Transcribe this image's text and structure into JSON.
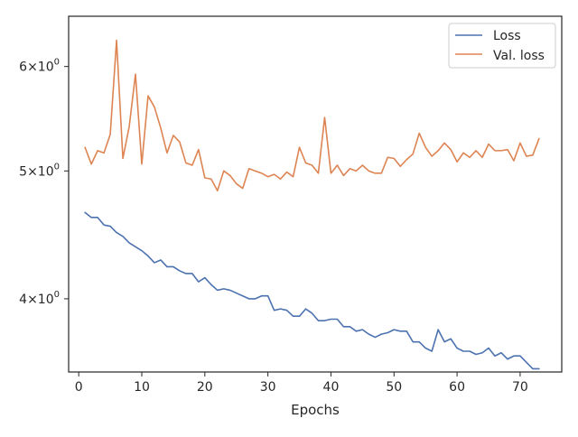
{
  "chart_data": {
    "type": "line",
    "title": "",
    "xlabel": "Epochs",
    "ylabel": "",
    "y_scale": "log",
    "xlim": [
      -1.6,
      76.6
    ],
    "ylim": [
      3.52,
      6.55
    ],
    "x_ticks": [
      0,
      10,
      20,
      30,
      40,
      50,
      60,
      70
    ],
    "x_tick_labels": [
      "0",
      "10",
      "20",
      "30",
      "40",
      "50",
      "60",
      "70"
    ],
    "y_ticks": [
      4,
      5,
      6
    ],
    "y_tick_labels": [
      {
        "base": "4",
        "sep": "×",
        "mant": "10",
        "exp": "0"
      },
      {
        "base": "5",
        "sep": "×",
        "mant": "10",
        "exp": "0"
      },
      {
        "base": "6",
        "sep": "×",
        "mant": "10",
        "exp": "0"
      }
    ],
    "legend_position": "top-right",
    "grid": false,
    "x": [
      1,
      2,
      3,
      4,
      5,
      6,
      7,
      8,
      9,
      10,
      11,
      12,
      13,
      14,
      15,
      16,
      17,
      18,
      19,
      20,
      21,
      22,
      23,
      24,
      25,
      26,
      27,
      28,
      29,
      30,
      31,
      32,
      33,
      34,
      35,
      36,
      37,
      38,
      39,
      40,
      41,
      42,
      43,
      44,
      45,
      46,
      47,
      48,
      49,
      50,
      51,
      52,
      53,
      54,
      55,
      56,
      57,
      58,
      59,
      60,
      61,
      62,
      63,
      64,
      65,
      66,
      67,
      68,
      69,
      70,
      71,
      72,
      73
    ],
    "series": [
      {
        "name": "Loss",
        "color": "#4c72b0",
        "values": [
          4.65,
          4.61,
          4.61,
          4.55,
          4.54,
          4.49,
          4.46,
          4.41,
          4.38,
          4.35,
          4.31,
          4.26,
          4.28,
          4.23,
          4.23,
          4.2,
          4.18,
          4.18,
          4.12,
          4.15,
          4.1,
          4.06,
          4.07,
          4.06,
          4.04,
          4.02,
          4.0,
          4.0,
          4.02,
          4.02,
          3.92,
          3.93,
          3.92,
          3.88,
          3.88,
          3.93,
          3.9,
          3.85,
          3.85,
          3.86,
          3.86,
          3.81,
          3.81,
          3.78,
          3.79,
          3.76,
          3.74,
          3.76,
          3.77,
          3.79,
          3.78,
          3.78,
          3.71,
          3.71,
          3.67,
          3.65,
          3.79,
          3.71,
          3.73,
          3.67,
          3.65,
          3.65,
          3.63,
          3.64,
          3.67,
          3.62,
          3.64,
          3.6,
          3.62,
          3.62,
          3.58,
          3.54,
          3.54
        ]
      },
      {
        "name": "Val. loss",
        "color": "#dd8452",
        "values": [
          5.21,
          5.06,
          5.18,
          5.16,
          5.33,
          6.28,
          5.11,
          5.4,
          5.92,
          5.06,
          5.7,
          5.59,
          5.39,
          5.16,
          5.32,
          5.26,
          5.07,
          5.05,
          5.19,
          4.94,
          4.93,
          4.83,
          5.0,
          4.96,
          4.89,
          4.85,
          5.02,
          5.0,
          4.98,
          4.95,
          4.97,
          4.93,
          4.99,
          4.95,
          5.21,
          5.07,
          5.05,
          4.98,
          5.49,
          4.98,
          5.05,
          4.96,
          5.02,
          5.0,
          5.05,
          5.0,
          4.98,
          4.98,
          5.12,
          5.11,
          5.04,
          5.1,
          5.15,
          5.34,
          5.21,
          5.13,
          5.18,
          5.25,
          5.19,
          5.08,
          5.16,
          5.12,
          5.18,
          5.12,
          5.24,
          5.18,
          5.18,
          5.19,
          5.09,
          5.25,
          5.13,
          5.14,
          5.29
        ]
      }
    ]
  }
}
